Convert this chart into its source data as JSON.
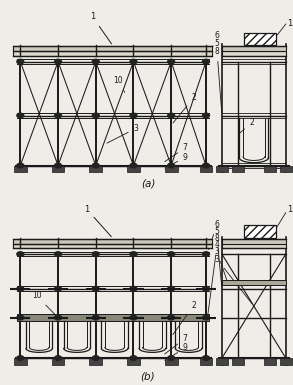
{
  "bg_color": "#f0ede8",
  "line_color": "#1a1a1a",
  "fig_width": 2.93,
  "fig_height": 3.85
}
